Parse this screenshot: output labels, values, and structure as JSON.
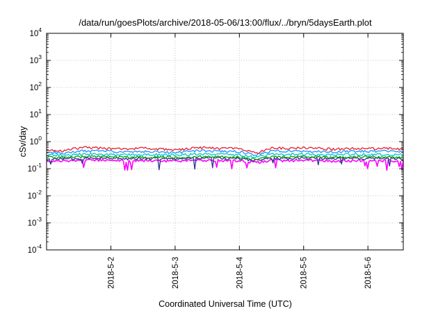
{
  "chart_data": {
    "type": "line",
    "title": "/data/run/goesPlots/archive/2018-05-06/13:00/flux/../bryn/5daysEarth.plot",
    "xlabel": "Coordinated Universal Time (UTC)",
    "ylabel": "cSv/day",
    "yscale": "log",
    "ylim": [
      0.0001,
      10000
    ],
    "xlim": [
      0,
      5.55
    ],
    "grid": true,
    "x_ticks": [
      {
        "label": "2018-5-2",
        "value": 1
      },
      {
        "label": "2018-5-3",
        "value": 2
      },
      {
        "label": "2018-5-4",
        "value": 3
      },
      {
        "label": "2018-5-5",
        "value": 4
      },
      {
        "label": "2018-5-6",
        "value": 5
      }
    ],
    "y_ticks": [
      {
        "base": "10",
        "exp": "-4",
        "value": 0.0001
      },
      {
        "base": "10",
        "exp": "-3",
        "value": 0.001
      },
      {
        "base": "10",
        "exp": "-2",
        "value": 0.01
      },
      {
        "base": "10",
        "exp": "-1",
        "value": 0.1
      },
      {
        "base": "10",
        "exp": "0",
        "value": 1
      },
      {
        "base": "10",
        "exp": "1",
        "value": 10
      },
      {
        "base": "10",
        "exp": "2",
        "value": 100
      },
      {
        "base": "10",
        "exp": "3",
        "value": 1000
      },
      {
        "base": "10",
        "exp": "4",
        "value": 10000
      }
    ],
    "x": [
      0.0,
      0.25,
      0.5,
      0.75,
      1.0,
      1.25,
      1.5,
      1.75,
      2.0,
      2.25,
      2.5,
      2.75,
      3.0,
      3.25,
      3.5,
      3.75,
      4.0,
      4.25,
      4.5,
      4.75,
      5.0,
      5.25,
      5.55
    ],
    "series": [
      {
        "color": "#ff00ff",
        "values": [
          0.2,
          0.19,
          0.2,
          0.21,
          0.2,
          0.19,
          0.2,
          0.2,
          0.19,
          0.2,
          0.21,
          0.2,
          0.2,
          0.17,
          0.2,
          0.2,
          0.21,
          0.2,
          0.19,
          0.2,
          0.2,
          0.2,
          0.19
        ]
      },
      {
        "color": "#2e3192",
        "values": [
          0.24,
          0.23,
          0.24,
          0.25,
          0.24,
          0.23,
          0.24,
          0.24,
          0.23,
          0.24,
          0.25,
          0.24,
          0.24,
          0.2,
          0.24,
          0.24,
          0.25,
          0.24,
          0.23,
          0.24,
          0.24,
          0.24,
          0.23
        ]
      },
      {
        "color": "#00a000",
        "values": [
          0.27,
          0.26,
          0.27,
          0.28,
          0.27,
          0.26,
          0.27,
          0.27,
          0.26,
          0.27,
          0.28,
          0.27,
          0.27,
          0.22,
          0.27,
          0.27,
          0.28,
          0.27,
          0.26,
          0.27,
          0.27,
          0.27,
          0.26
        ]
      },
      {
        "color": "#00c8c8",
        "values": [
          0.33,
          0.31,
          0.34,
          0.35,
          0.33,
          0.32,
          0.34,
          0.33,
          0.32,
          0.34,
          0.35,
          0.33,
          0.33,
          0.26,
          0.34,
          0.34,
          0.35,
          0.33,
          0.32,
          0.34,
          0.33,
          0.34,
          0.32
        ]
      },
      {
        "color": "#1e90ff",
        "values": [
          0.42,
          0.38,
          0.44,
          0.46,
          0.43,
          0.41,
          0.44,
          0.42,
          0.4,
          0.44,
          0.46,
          0.43,
          0.43,
          0.32,
          0.44,
          0.44,
          0.46,
          0.43,
          0.41,
          0.44,
          0.43,
          0.44,
          0.41
        ]
      },
      {
        "color": "#e8202a",
        "values": [
          0.52,
          0.46,
          0.58,
          0.6,
          0.55,
          0.52,
          0.57,
          0.54,
          0.5,
          0.57,
          0.6,
          0.55,
          0.55,
          0.38,
          0.57,
          0.57,
          0.6,
          0.55,
          0.52,
          0.56,
          0.55,
          0.57,
          0.52
        ]
      }
    ]
  }
}
